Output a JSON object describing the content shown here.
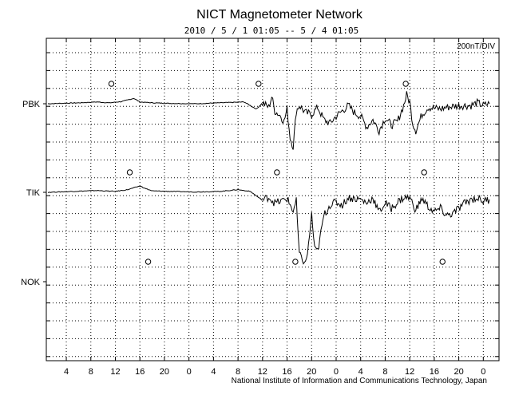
{
  "chart_data": {
    "type": "line",
    "title": "NICT Magnetometer Network",
    "subtitle": "2010 / 5 / 1   01:05 --  5 / 4  01:05",
    "scale_label": "200nT/DIV",
    "footer": "National Institute of Information and Communications Technology, Japan",
    "x_tick_labels": [
      "4",
      "8",
      "12",
      "16",
      "20",
      "0",
      "4",
      "8",
      "12",
      "16",
      "20",
      "0",
      "4",
      "8",
      "12",
      "16",
      "20",
      "0"
    ],
    "x_range_hours": [
      0,
      72
    ],
    "grid": true,
    "series": [
      {
        "name": "PBK",
        "midnight_markers_hours": [
          11,
          35,
          59
        ],
        "samples": [
          [
            0,
            0
          ],
          [
            5,
            0.05
          ],
          [
            8,
            0.1
          ],
          [
            10,
            0.05
          ],
          [
            12,
            0.12
          ],
          [
            14,
            0.3
          ],
          [
            15,
            0.1
          ],
          [
            17,
            0.05
          ],
          [
            20,
            0.02
          ],
          [
            24,
            0
          ],
          [
            28,
            0.05
          ],
          [
            32,
            0.1
          ],
          [
            34,
            -0.3
          ],
          [
            35,
            0.05
          ],
          [
            36,
            -0.2
          ],
          [
            36.5,
            0.4
          ],
          [
            37,
            -0.4
          ],
          [
            38,
            -0.7
          ],
          [
            38.5,
            -1.0
          ],
          [
            39,
            -0.3
          ],
          [
            39.5,
            -1.9
          ],
          [
            40,
            -2.4
          ],
          [
            40.5,
            -0.4
          ],
          [
            41,
            -0.1
          ],
          [
            42,
            -0.5
          ],
          [
            43,
            -0.6
          ],
          [
            44,
            -0.2
          ],
          [
            45,
            -0.9
          ],
          [
            46,
            -1.1
          ],
          [
            47,
            -0.7
          ],
          [
            48,
            -0.4
          ],
          [
            49,
            -0.1
          ],
          [
            50,
            -0.5
          ],
          [
            51,
            -0.7
          ],
          [
            52,
            -1.3
          ],
          [
            53,
            -0.9
          ],
          [
            54,
            -1.5
          ],
          [
            55,
            -0.8
          ],
          [
            56,
            -1.2
          ],
          [
            57,
            -1.0
          ],
          [
            58,
            -0.1
          ],
          [
            58.5,
            0.5
          ],
          [
            59,
            0.1
          ],
          [
            59.5,
            -1.1
          ],
          [
            60,
            -1.5
          ],
          [
            61,
            -0.6
          ],
          [
            62,
            -0.2
          ],
          [
            64,
            -0.3
          ],
          [
            65,
            -0.2
          ],
          [
            67,
            -0.1
          ],
          [
            69,
            -0.1
          ],
          [
            70,
            0.05
          ],
          [
            71,
            -0.1
          ],
          [
            72,
            0
          ]
        ]
      },
      {
        "name": "TIK",
        "midnight_markers_hours": [
          14,
          38,
          62
        ],
        "samples": [
          [
            0,
            0
          ],
          [
            4,
            0.05
          ],
          [
            8,
            0.1
          ],
          [
            11,
            0.05
          ],
          [
            13,
            0.15
          ],
          [
            15,
            0.35
          ],
          [
            16,
            0.2
          ],
          [
            17,
            0.08
          ],
          [
            20,
            0.05
          ],
          [
            24,
            0.02
          ],
          [
            28,
            0.05
          ],
          [
            31,
            0.15
          ],
          [
            33,
            0.05
          ],
          [
            35,
            -0.45
          ],
          [
            36,
            -0.25
          ],
          [
            37,
            -0.6
          ],
          [
            38,
            -0.5
          ],
          [
            39,
            -0.35
          ],
          [
            40,
            -1.05
          ],
          [
            40.5,
            -0.5
          ],
          [
            41,
            -3.5
          ],
          [
            42,
            -4.0
          ],
          [
            42.5,
            -3.0
          ],
          [
            43,
            -1.2
          ],
          [
            43.5,
            -3.2
          ],
          [
            44,
            -3.3
          ],
          [
            45,
            -1.3
          ],
          [
            46,
            -0.7
          ],
          [
            47,
            -0.55
          ],
          [
            48,
            -0.7
          ],
          [
            49,
            -0.3
          ],
          [
            50,
            -0.35
          ],
          [
            51,
            -0.4
          ],
          [
            52,
            -0.6
          ],
          [
            53,
            -0.3
          ],
          [
            54,
            -1.1
          ],
          [
            55,
            -0.6
          ],
          [
            56,
            -0.9
          ],
          [
            57,
            -0.55
          ],
          [
            58,
            -0.3
          ],
          [
            59,
            -0.3
          ],
          [
            60,
            -1.0
          ],
          [
            61,
            -0.35
          ],
          [
            62,
            -0.8
          ],
          [
            63,
            -1.1
          ],
          [
            64,
            -0.9
          ],
          [
            65,
            -1.3
          ],
          [
            66,
            -1.2
          ],
          [
            67,
            -0.9
          ],
          [
            68,
            -0.6
          ],
          [
            69,
            -0.4
          ],
          [
            70,
            -0.3
          ],
          [
            71,
            -0.5
          ],
          [
            72,
            -0.4
          ]
        ]
      },
      {
        "name": "NOK",
        "midnight_markers_hours": [
          17,
          41,
          65
        ],
        "samples": []
      }
    ]
  }
}
